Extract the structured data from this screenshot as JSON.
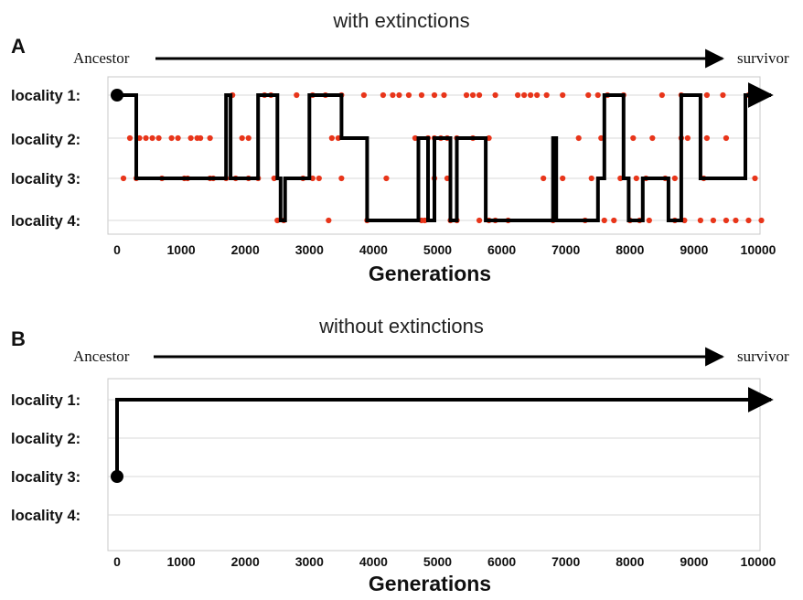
{
  "colors": {
    "trace": "#000000",
    "extinction": "#e8351a",
    "grid": "#d9d9d9",
    "frame": "#c8c8c8"
  },
  "chart_data": [
    {
      "panel": "A",
      "type": "line",
      "title": "with extinctions",
      "arrow_start": "Ancestor",
      "arrow_end": "survivor",
      "rows": [
        "locality 1:",
        "locality 2:",
        "locality 3:",
        "locality 4:"
      ],
      "xlabel": "Generations",
      "xlim": [
        0,
        10000
      ],
      "xticks": [
        0,
        1000,
        2000,
        3000,
        4000,
        5000,
        6000,
        7000,
        8000,
        9000,
        10000
      ],
      "grid": true,
      "lineage": {
        "start_locality": 1,
        "x": [
          0,
          300,
          300,
          1700,
          1700,
          1770,
          1770,
          2200,
          2200,
          2500,
          2500,
          2550,
          2550,
          2620,
          2620,
          3000,
          3000,
          3500,
          3500,
          3900,
          3900,
          4700,
          4700,
          4850,
          4850,
          4950,
          4950,
          5200,
          5200,
          5300,
          5300,
          5750,
          5750,
          6800,
          6800,
          6850,
          6850,
          7500,
          7500,
          7600,
          7600,
          7900,
          7900,
          7980,
          7980,
          8200,
          8200,
          8600,
          8600,
          8800,
          8800,
          9100,
          9100,
          9800,
          9800,
          9950,
          10200
        ],
        "y": [
          1,
          1,
          3,
          3,
          1,
          1,
          3,
          3,
          1,
          1,
          3,
          3,
          4,
          4,
          3,
          3,
          1,
          1,
          2,
          2,
          4,
          4,
          2,
          2,
          4,
          4,
          2,
          2,
          4,
          4,
          2,
          2,
          4,
          4,
          2,
          2,
          4,
          4,
          3,
          3,
          1,
          1,
          3,
          3,
          4,
          4,
          3,
          3,
          4,
          4,
          1,
          1,
          3,
          3,
          1,
          1,
          1
        ]
      },
      "extinctions": {
        "locality_1": [
          1800,
          2300,
          2400,
          2800,
          3050,
          3250,
          3500,
          3850,
          4150,
          4300,
          4400,
          4550,
          4750,
          4950,
          5100,
          5450,
          5550,
          5650,
          5900,
          6250,
          6350,
          6450,
          6550,
          6700,
          6950,
          7350,
          7500,
          7650,
          7900,
          8500,
          8800,
          9200,
          9450,
          9850
        ],
        "locality_2": [
          200,
          350,
          450,
          550,
          650,
          850,
          950,
          1150,
          1250,
          1300,
          1450,
          1950,
          2050,
          3350,
          3450,
          4650,
          4850,
          4950,
          5050,
          5150,
          5300,
          5550,
          5800,
          7200,
          7550,
          8050,
          8350,
          8800,
          8900,
          9200,
          9500
        ],
        "locality_3": [
          100,
          300,
          700,
          1050,
          1100,
          1450,
          1500,
          1700,
          1850,
          2050,
          2200,
          2450,
          2900,
          3050,
          3150,
          3500,
          4200,
          4950,
          5150,
          6650,
          6950,
          7400,
          7850,
          8100,
          8250,
          8550,
          8700,
          9150,
          9950
        ],
        "locality_4": [
          2500,
          2600,
          3300,
          3900,
          4750,
          4800,
          5200,
          5300,
          5650,
          5800,
          5900,
          6100,
          6800,
          7300,
          7600,
          7750,
          8000,
          8150,
          8300,
          8700,
          8850,
          9100,
          9300,
          9500,
          9650,
          9850,
          10050
        ]
      }
    },
    {
      "panel": "B",
      "type": "line",
      "title": "without extinctions",
      "arrow_start": "Ancestor",
      "arrow_end": "survivor",
      "rows": [
        "locality 1:",
        "locality 2:",
        "locality 3:",
        "locality 4:"
      ],
      "xlabel": "Generations",
      "xlim": [
        0,
        10000
      ],
      "xticks": [
        0,
        1000,
        2000,
        3000,
        4000,
        5000,
        6000,
        7000,
        8000,
        9000,
        10000
      ],
      "grid": true,
      "lineage": {
        "start_locality": 3,
        "x": [
          0,
          0,
          10200
        ],
        "y": [
          3,
          1,
          1
        ]
      },
      "extinctions": {}
    }
  ]
}
